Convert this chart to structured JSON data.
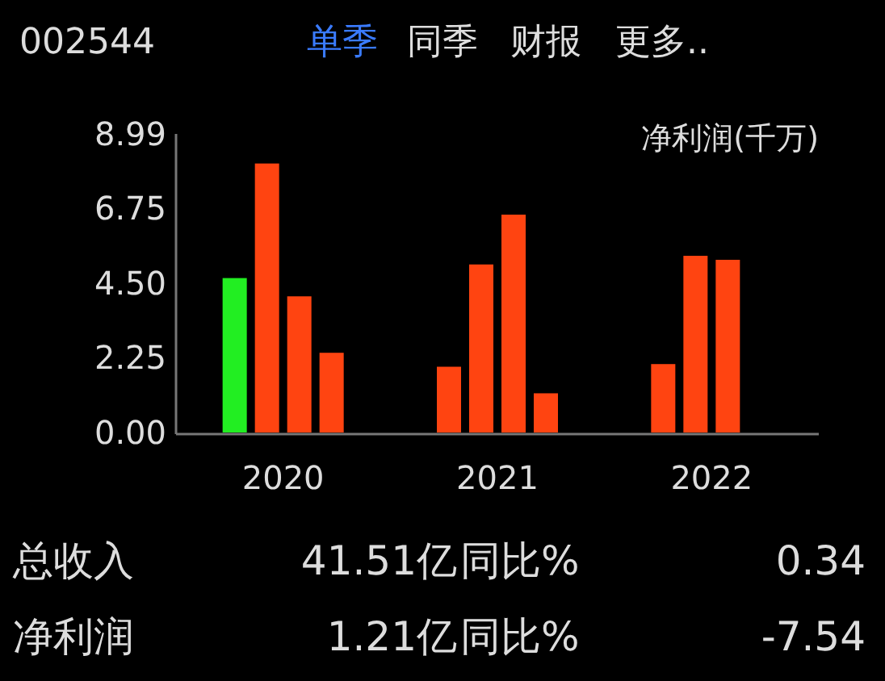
{
  "chart_data": {
    "type": "bar",
    "title": "002544",
    "ylabel": "净利润(千万)",
    "categories": [
      "2020",
      "2021",
      "2022"
    ],
    "series": [
      {
        "colors": [
          "#22ee22",
          "#ff4411",
          "#ff4411"
        ],
        "values": [
          4.65,
          1.98,
          2.06
        ]
      },
      {
        "color": "#ff4411",
        "values": [
          8.1,
          5.06,
          5.32
        ]
      },
      {
        "color": "#ff4411",
        "values": [
          4.1,
          6.56,
          5.2
        ]
      },
      {
        "color": "#ff4411",
        "values": [
          2.4,
          1.18,
          null
        ]
      }
    ],
    "ylim": [
      0,
      8.99
    ],
    "yticks": [
      {
        "value": 0,
        "label": "0.00"
      },
      {
        "value": 2.25,
        "label": "2.25"
      },
      {
        "value": 4.5,
        "label": "4.50"
      },
      {
        "value": 6.75,
        "label": "6.75"
      },
      {
        "value": 8.99,
        "label": "8.99"
      }
    ],
    "annotations": [
      "单季",
      "同季",
      "财报",
      "更多..",
      "总收入",
      "41.51亿",
      "同比%",
      "0.34",
      "净利润",
      "1.21亿",
      "同比%",
      "-7.54"
    ]
  }
}
